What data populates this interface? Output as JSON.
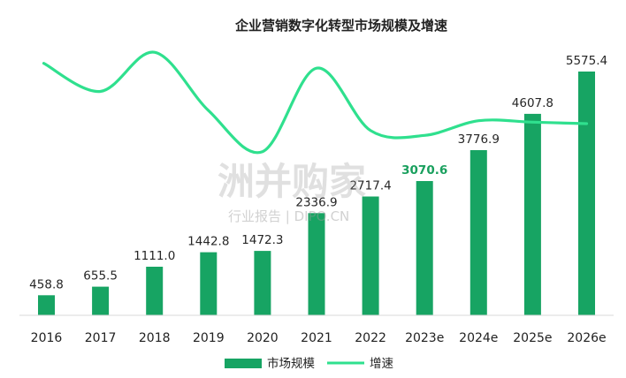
{
  "chart_data": {
    "type": "bar",
    "title": "企业营销数字化转型市场规模及增速",
    "categories": [
      "2016",
      "2017",
      "2018",
      "2019",
      "2020",
      "2021",
      "2022",
      "2023e",
      "2024e",
      "2025e",
      "2026e"
    ],
    "series": [
      {
        "name": "市场规模",
        "type": "bar",
        "values": [
          458.8,
          655.5,
          1111.0,
          1442.8,
          1472.3,
          2336.9,
          2717.4,
          3070.6,
          3776.9,
          4607.8,
          5575.4
        ],
        "labels": [
          "458.8",
          "655.5",
          "1111.0",
          "1442.8",
          "1472.3",
          "2336.9",
          "2717.4",
          "3070.6",
          "3776.9",
          "4607.8",
          "5575.4"
        ],
        "color": "#17a463"
      },
      {
        "name": "增速",
        "type": "line",
        "values": [
          null,
          42.9,
          69.5,
          29.9,
          2.0,
          58.7,
          16.3,
          13.0,
          23.0,
          22.0,
          21.0
        ],
        "color": "#2fe08e"
      }
    ],
    "highlight_label_index": 7,
    "highlight_color": "#1aa05e",
    "ylim": [
      0,
      6000
    ],
    "legend_position": "bottom",
    "grid": false
  },
  "watermark": {
    "main": "洲并购家",
    "sub": "行业报告 | DIPO.CN"
  }
}
